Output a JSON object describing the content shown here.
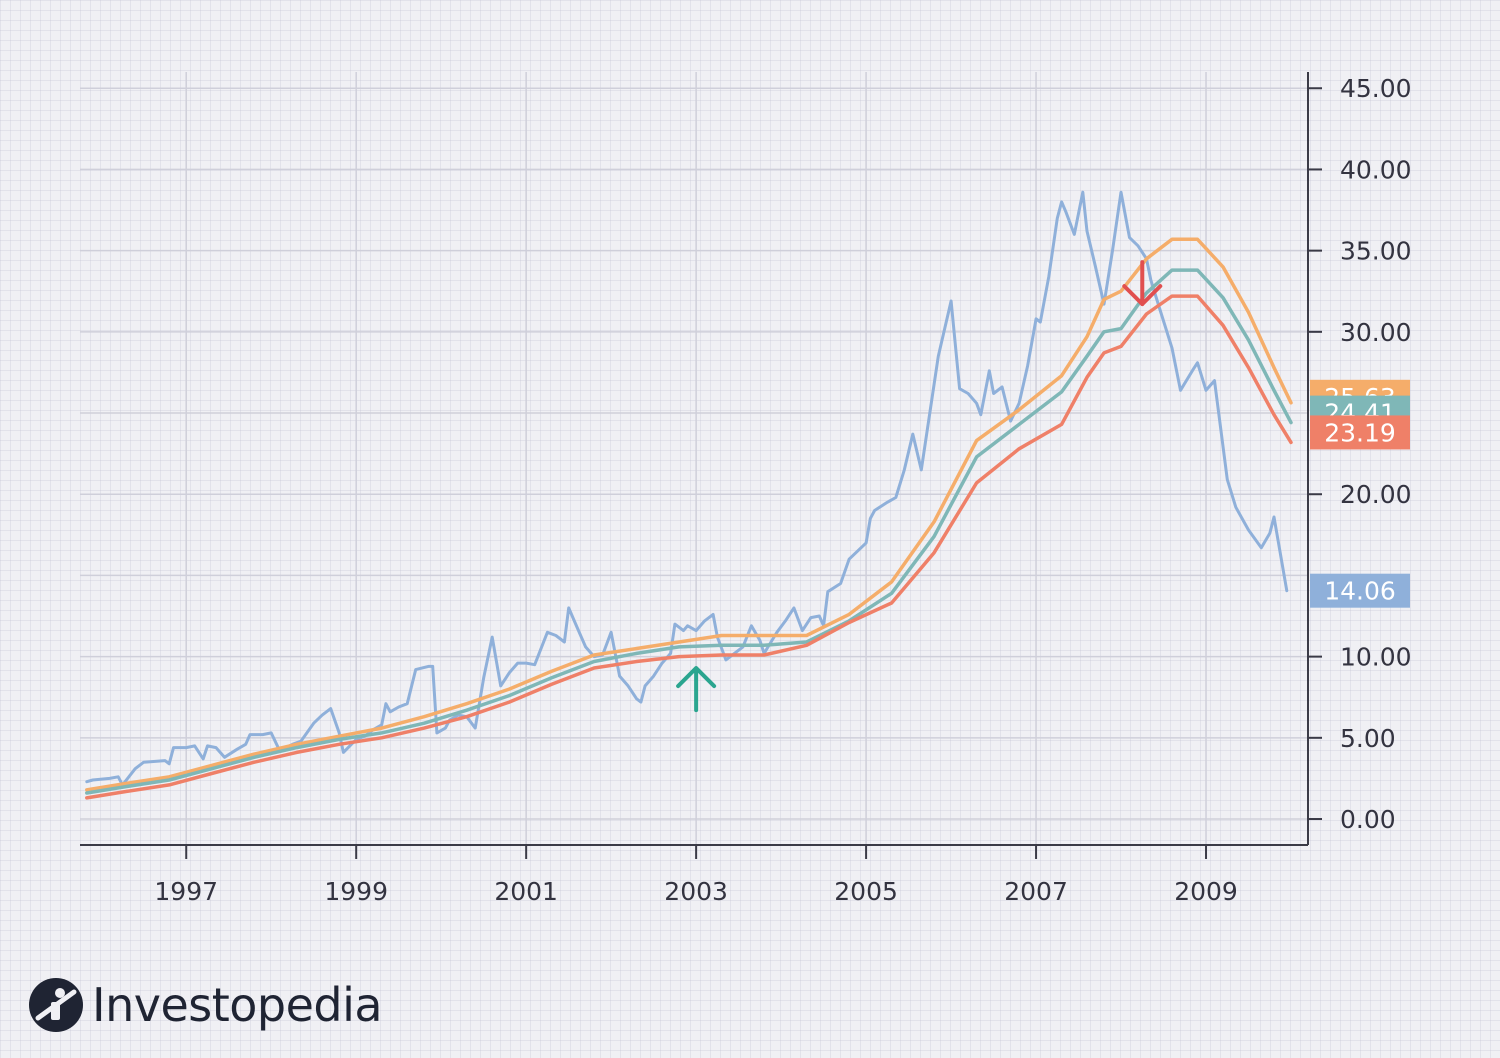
{
  "chart_data": {
    "type": "line",
    "title": "",
    "xlabel": "",
    "ylabel": "",
    "xlim": [
      1995.75,
      2010.2
    ],
    "ylim": [
      -1.6,
      46
    ],
    "x_ticks": [
      "1997",
      "1999",
      "2001",
      "2003",
      "2005",
      "2007",
      "2009"
    ],
    "y_ticks": [
      "0.00",
      "5.00",
      "10.00",
      "20.00",
      "30.00",
      "35.00",
      "40.00",
      "45.00"
    ],
    "grid": true,
    "y_axis_side": "right",
    "series": [
      {
        "color": "#8fb0da",
        "last_value_label": "14.06",
        "points": [
          [
            1995.83,
            2.3
          ],
          [
            1995.9,
            2.4
          ],
          [
            1996.1,
            2.5
          ],
          [
            1996.2,
            2.6
          ],
          [
            1996.25,
            2.1
          ],
          [
            1996.4,
            3.1
          ],
          [
            1996.5,
            3.5
          ],
          [
            1996.75,
            3.6
          ],
          [
            1996.8,
            3.4
          ],
          [
            1996.85,
            4.4
          ],
          [
            1997.0,
            4.4
          ],
          [
            1997.1,
            4.5
          ],
          [
            1997.2,
            3.7
          ],
          [
            1997.25,
            4.5
          ],
          [
            1997.35,
            4.4
          ],
          [
            1997.45,
            3.8
          ],
          [
            1997.6,
            4.3
          ],
          [
            1997.7,
            4.6
          ],
          [
            1997.75,
            5.2
          ],
          [
            1997.9,
            5.2
          ],
          [
            1998.0,
            5.3
          ],
          [
            1998.1,
            4.2
          ],
          [
            1998.25,
            4.6
          ],
          [
            1998.35,
            4.8
          ],
          [
            1998.5,
            5.9
          ],
          [
            1998.6,
            6.4
          ],
          [
            1998.7,
            6.8
          ],
          [
            1998.8,
            5.3
          ],
          [
            1998.85,
            4.1
          ],
          [
            1999.0,
            4.9
          ],
          [
            1999.1,
            5.1
          ],
          [
            1999.2,
            5.5
          ],
          [
            1999.3,
            5.8
          ],
          [
            1999.35,
            7.1
          ],
          [
            1999.4,
            6.6
          ],
          [
            1999.5,
            6.9
          ],
          [
            1999.6,
            7.1
          ],
          [
            1999.7,
            9.2
          ],
          [
            1999.85,
            9.4
          ],
          [
            1999.9,
            9.4
          ],
          [
            1999.95,
            5.3
          ],
          [
            2000.05,
            5.6
          ],
          [
            2000.1,
            6.1
          ],
          [
            2000.2,
            6.4
          ],
          [
            2000.3,
            6.3
          ],
          [
            2000.4,
            5.6
          ],
          [
            2000.5,
            8.7
          ],
          [
            2000.6,
            11.2
          ],
          [
            2000.7,
            8.2
          ],
          [
            2000.8,
            9.0
          ],
          [
            2000.9,
            9.6
          ],
          [
            2001.0,
            9.6
          ],
          [
            2001.1,
            9.5
          ],
          [
            2001.25,
            11.5
          ],
          [
            2001.35,
            11.3
          ],
          [
            2001.45,
            10.9
          ],
          [
            2001.5,
            13.0
          ],
          [
            2001.6,
            11.8
          ],
          [
            2001.7,
            10.6
          ],
          [
            2001.8,
            10.0
          ],
          [
            2001.9,
            10.1
          ],
          [
            2002.0,
            11.5
          ],
          [
            2002.1,
            8.8
          ],
          [
            2002.2,
            8.2
          ],
          [
            2002.3,
            7.4
          ],
          [
            2002.35,
            7.2
          ],
          [
            2002.4,
            8.2
          ],
          [
            2002.5,
            8.8
          ],
          [
            2002.6,
            9.6
          ],
          [
            2002.7,
            10.2
          ],
          [
            2002.75,
            12.0
          ],
          [
            2002.85,
            11.6
          ],
          [
            2002.9,
            11.9
          ],
          [
            2003.0,
            11.6
          ],
          [
            2003.1,
            12.2
          ],
          [
            2003.2,
            12.6
          ],
          [
            2003.25,
            11.2
          ],
          [
            2003.35,
            9.8
          ],
          [
            2003.45,
            10.2
          ],
          [
            2003.55,
            10.6
          ],
          [
            2003.65,
            11.9
          ],
          [
            2003.75,
            11.0
          ],
          [
            2003.8,
            10.2
          ],
          [
            2003.95,
            11.5
          ],
          [
            2004.05,
            12.2
          ],
          [
            2004.15,
            13.0
          ],
          [
            2004.25,
            11.6
          ],
          [
            2004.35,
            12.4
          ],
          [
            2004.45,
            12.5
          ],
          [
            2004.5,
            11.9
          ],
          [
            2004.55,
            14.0
          ],
          [
            2004.7,
            14.5
          ],
          [
            2004.8,
            16.0
          ],
          [
            2004.9,
            16.5
          ],
          [
            2005.0,
            17.0
          ],
          [
            2005.05,
            18.5
          ],
          [
            2005.1,
            19.0
          ],
          [
            2005.25,
            19.5
          ],
          [
            2005.35,
            19.8
          ],
          [
            2005.45,
            21.5
          ],
          [
            2005.55,
            23.7
          ],
          [
            2005.65,
            21.5
          ],
          [
            2005.75,
            25.0
          ],
          [
            2005.85,
            28.5
          ],
          [
            2006.0,
            31.9
          ],
          [
            2006.1,
            26.5
          ],
          [
            2006.2,
            26.2
          ],
          [
            2006.3,
            25.6
          ],
          [
            2006.35,
            24.9
          ],
          [
            2006.45,
            27.6
          ],
          [
            2006.5,
            26.2
          ],
          [
            2006.6,
            26.6
          ],
          [
            2006.7,
            24.5
          ],
          [
            2006.8,
            25.6
          ],
          [
            2006.9,
            27.9
          ],
          [
            2007.0,
            30.8
          ],
          [
            2007.05,
            30.6
          ],
          [
            2007.15,
            33.4
          ],
          [
            2007.25,
            37.0
          ],
          [
            2007.3,
            38.0
          ],
          [
            2007.35,
            37.4
          ],
          [
            2007.45,
            36.0
          ],
          [
            2007.55,
            38.6
          ],
          [
            2007.6,
            36.2
          ],
          [
            2007.7,
            34.0
          ],
          [
            2007.8,
            31.7
          ],
          [
            2007.9,
            35.0
          ],
          [
            2008.0,
            38.6
          ],
          [
            2008.1,
            35.8
          ],
          [
            2008.2,
            35.3
          ],
          [
            2008.3,
            34.5
          ],
          [
            2008.35,
            33.2
          ],
          [
            2008.45,
            31.5
          ],
          [
            2008.6,
            29.0
          ],
          [
            2008.7,
            26.4
          ],
          [
            2008.85,
            27.7
          ],
          [
            2008.9,
            28.1
          ],
          [
            2009.0,
            26.4
          ],
          [
            2009.1,
            27.0
          ],
          [
            2009.25,
            20.9
          ],
          [
            2009.35,
            19.2
          ],
          [
            2009.5,
            17.8
          ],
          [
            2009.65,
            16.7
          ],
          [
            2009.75,
            17.6
          ],
          [
            2009.8,
            18.6
          ],
          [
            2009.95,
            14.06
          ]
        ]
      },
      {
        "color": "#f5ad6a",
        "last_value_label": "25.63",
        "points": [
          [
            1995.83,
            1.8
          ],
          [
            1996.3,
            2.2
          ],
          [
            1996.8,
            2.6
          ],
          [
            1997.3,
            3.3
          ],
          [
            1997.8,
            4.0
          ],
          [
            1998.3,
            4.6
          ],
          [
            1998.8,
            5.1
          ],
          [
            1999.3,
            5.6
          ],
          [
            1999.8,
            6.3
          ],
          [
            2000.3,
            7.1
          ],
          [
            2000.8,
            8.0
          ],
          [
            2001.3,
            9.1
          ],
          [
            2001.8,
            10.1
          ],
          [
            2002.3,
            10.5
          ],
          [
            2002.8,
            10.9
          ],
          [
            2003.3,
            11.3
          ],
          [
            2003.8,
            11.3
          ],
          [
            2004.3,
            11.3
          ],
          [
            2004.8,
            12.6
          ],
          [
            2005.3,
            14.6
          ],
          [
            2005.8,
            18.3
          ],
          [
            2006.3,
            23.3
          ],
          [
            2006.8,
            25.2
          ],
          [
            2007.3,
            27.3
          ],
          [
            2007.6,
            29.7
          ],
          [
            2007.8,
            32.0
          ],
          [
            2008.0,
            32.5
          ],
          [
            2008.3,
            34.5
          ],
          [
            2008.6,
            35.7
          ],
          [
            2008.9,
            35.7
          ],
          [
            2009.2,
            34.0
          ],
          [
            2009.5,
            31.2
          ],
          [
            2009.8,
            27.8
          ],
          [
            2010.0,
            25.63
          ]
        ]
      },
      {
        "color": "#7fb7b7",
        "last_value_label": "24.41",
        "points": [
          [
            1995.83,
            1.6
          ],
          [
            1996.3,
            2.0
          ],
          [
            1996.8,
            2.4
          ],
          [
            1997.3,
            3.1
          ],
          [
            1997.8,
            3.8
          ],
          [
            1998.3,
            4.4
          ],
          [
            1998.8,
            4.9
          ],
          [
            1999.3,
            5.3
          ],
          [
            1999.8,
            5.9
          ],
          [
            2000.3,
            6.7
          ],
          [
            2000.8,
            7.6
          ],
          [
            2001.3,
            8.7
          ],
          [
            2001.8,
            9.7
          ],
          [
            2002.3,
            10.2
          ],
          [
            2002.8,
            10.6
          ],
          [
            2003.3,
            10.7
          ],
          [
            2003.8,
            10.7
          ],
          [
            2004.3,
            10.9
          ],
          [
            2004.8,
            12.2
          ],
          [
            2005.3,
            13.9
          ],
          [
            2005.8,
            17.4
          ],
          [
            2006.3,
            22.3
          ],
          [
            2006.8,
            24.3
          ],
          [
            2007.3,
            26.3
          ],
          [
            2007.6,
            28.5
          ],
          [
            2007.8,
            30.0
          ],
          [
            2008.0,
            30.2
          ],
          [
            2008.3,
            32.4
          ],
          [
            2008.6,
            33.8
          ],
          [
            2008.9,
            33.8
          ],
          [
            2009.2,
            32.1
          ],
          [
            2009.5,
            29.5
          ],
          [
            2009.8,
            26.4
          ],
          [
            2010.0,
            24.41
          ]
        ]
      },
      {
        "color": "#ef8068",
        "last_value_label": "23.19",
        "points": [
          [
            1995.83,
            1.3
          ],
          [
            1996.3,
            1.7
          ],
          [
            1996.8,
            2.1
          ],
          [
            1997.3,
            2.8
          ],
          [
            1997.8,
            3.5
          ],
          [
            1998.3,
            4.1
          ],
          [
            1998.8,
            4.6
          ],
          [
            1999.3,
            5.0
          ],
          [
            1999.8,
            5.6
          ],
          [
            2000.3,
            6.3
          ],
          [
            2000.8,
            7.2
          ],
          [
            2001.3,
            8.3
          ],
          [
            2001.8,
            9.3
          ],
          [
            2002.3,
            9.7
          ],
          [
            2002.8,
            10.0
          ],
          [
            2003.3,
            10.1
          ],
          [
            2003.8,
            10.1
          ],
          [
            2004.3,
            10.7
          ],
          [
            2004.8,
            12.1
          ],
          [
            2005.3,
            13.3
          ],
          [
            2005.8,
            16.4
          ],
          [
            2006.3,
            20.7
          ],
          [
            2006.8,
            22.8
          ],
          [
            2007.3,
            24.3
          ],
          [
            2007.6,
            27.2
          ],
          [
            2007.8,
            28.7
          ],
          [
            2008.0,
            29.1
          ],
          [
            2008.3,
            31.1
          ],
          [
            2008.6,
            32.2
          ],
          [
            2008.9,
            32.2
          ],
          [
            2009.2,
            30.4
          ],
          [
            2009.5,
            27.8
          ],
          [
            2009.8,
            24.9
          ],
          [
            2010.0,
            23.19
          ]
        ]
      }
    ],
    "annotations": [
      {
        "type": "arrow-up",
        "x": 2003.0,
        "y": 8.0,
        "color": "#2aa58f"
      },
      {
        "type": "arrow-down",
        "x": 2008.25,
        "y": 33.0,
        "color": "#e14f4f"
      }
    ]
  },
  "brand": {
    "name": "Investopedia",
    "logo_icon": "investopedia-logo-icon"
  }
}
